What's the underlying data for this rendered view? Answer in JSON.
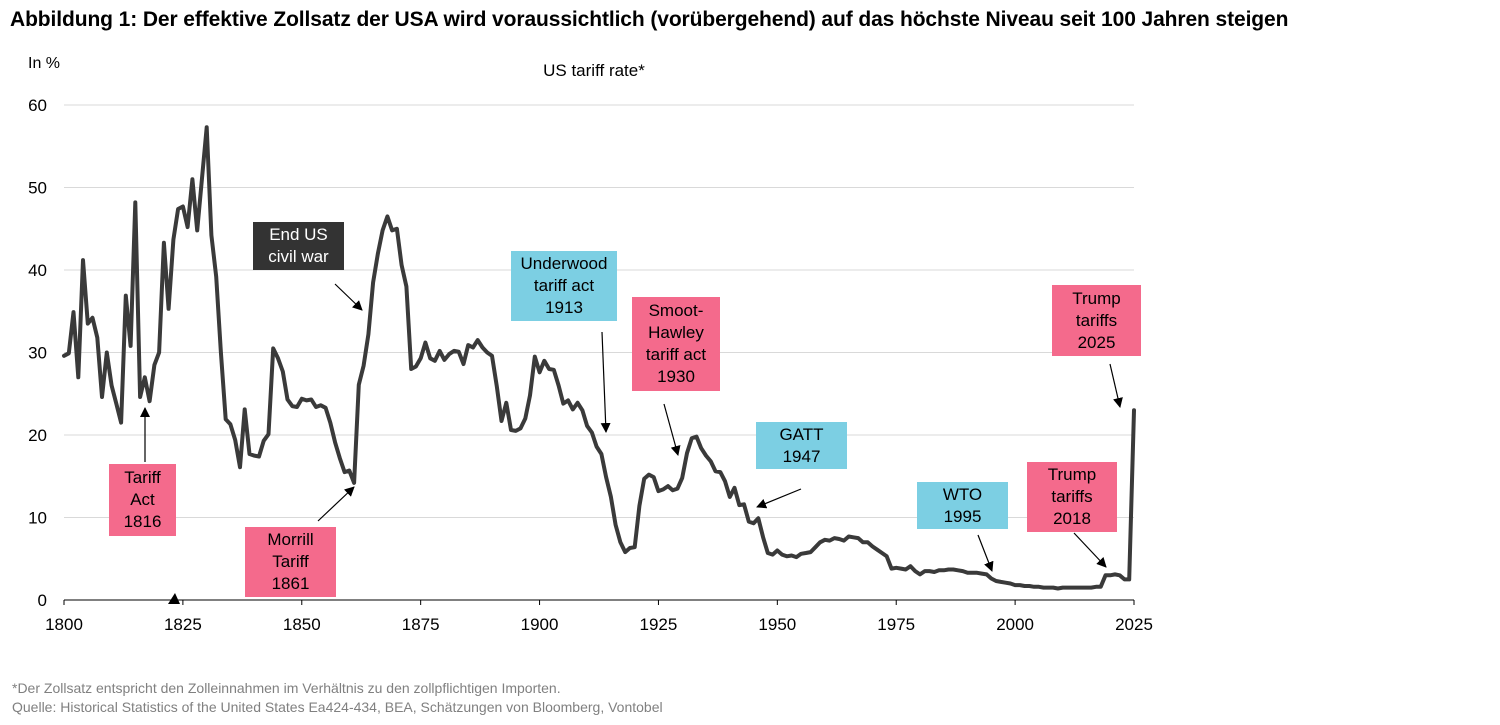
{
  "title": "Abbildung 1: Der effektive Zollsatz der USA wird voraussichtlich (vorübergehend) auf das höchste Niveau seit 100 Jahren steigen",
  "footnote": "*Der Zollsatz entspricht den Zolleinnahmen im Verhältnis zu den zollpflichtigen Importen.",
  "source": "Quelle: Historical Statistics of the United States Ea424-434, BEA, Schätzungen von Bloomberg, Vontobel",
  "colors": {
    "line": "#3a3a3a",
    "pink": "#f46a8c",
    "blue": "#7ccfe3",
    "dark": "#333333",
    "grid": "#d9d9d9"
  },
  "annotations": {
    "tariff_act_1816": "Tariff\nAct\n1816",
    "morrill_1861": "Morrill\nTariff\n1861",
    "civil_war": "End US\ncivil war",
    "underwood_1913": "Underwood\ntariff act\n1913",
    "smoot_hawley_1930": "Smoot-\nHawley\ntariff act\n1930",
    "gatt_1947": "GATT\n1947",
    "wto_1995": "WTO\n1995",
    "trump_2018": "Trump\ntariffs\n2018",
    "trump_2025": "Trump\ntariffs\n2025"
  },
  "chart_data": {
    "type": "line",
    "title": "US tariff rate*",
    "ylabel": "In %",
    "xlim": [
      1800,
      2025
    ],
    "ylim": [
      0,
      60
    ],
    "x_ticks": [
      1800,
      1825,
      1850,
      1875,
      1900,
      1925,
      1950,
      1975,
      2000,
      2025
    ],
    "y_ticks": [
      0,
      10,
      20,
      30,
      40,
      50,
      60
    ],
    "grid": "horizontal",
    "series": [
      {
        "values": [
          [
            1800,
            29.6
          ],
          [
            1801,
            29.9
          ],
          [
            1802,
            34.9
          ],
          [
            1803,
            27.0
          ],
          [
            1804,
            41.2
          ],
          [
            1805,
            33.5
          ],
          [
            1806,
            34.2
          ],
          [
            1807,
            31.8
          ],
          [
            1808,
            24.6
          ],
          [
            1809,
            30.0
          ],
          [
            1810,
            26.0
          ],
          [
            1811,
            23.8
          ],
          [
            1812,
            21.5
          ],
          [
            1813,
            36.9
          ],
          [
            1814,
            30.8
          ],
          [
            1815,
            48.2
          ],
          [
            1816,
            24.6
          ],
          [
            1817,
            27.0
          ],
          [
            1818,
            24.1
          ],
          [
            1819,
            28.5
          ],
          [
            1820,
            30.0
          ],
          [
            1821,
            43.3
          ],
          [
            1822,
            35.3
          ],
          [
            1823,
            43.7
          ],
          [
            1824,
            47.4
          ],
          [
            1825,
            47.7
          ],
          [
            1826,
            45.2
          ],
          [
            1827,
            51.0
          ],
          [
            1828,
            44.8
          ],
          [
            1829,
            51.0
          ],
          [
            1830,
            57.3
          ],
          [
            1831,
            44.2
          ],
          [
            1832,
            39.2
          ],
          [
            1833,
            30.0
          ],
          [
            1834,
            21.9
          ],
          [
            1835,
            21.3
          ],
          [
            1836,
            19.4
          ],
          [
            1837,
            16.1
          ],
          [
            1838,
            23.1
          ],
          [
            1839,
            17.7
          ],
          [
            1840,
            17.5
          ],
          [
            1841,
            17.4
          ],
          [
            1842,
            19.3
          ],
          [
            1843,
            20.1
          ],
          [
            1844,
            30.5
          ],
          [
            1845,
            29.3
          ],
          [
            1846,
            27.7
          ],
          [
            1847,
            24.3
          ],
          [
            1848,
            23.5
          ],
          [
            1849,
            23.4
          ],
          [
            1850,
            24.4
          ],
          [
            1851,
            24.2
          ],
          [
            1852,
            24.3
          ],
          [
            1853,
            23.4
          ],
          [
            1854,
            23.6
          ],
          [
            1855,
            23.3
          ],
          [
            1856,
            21.5
          ],
          [
            1857,
            19.1
          ],
          [
            1858,
            17.2
          ],
          [
            1859,
            15.5
          ],
          [
            1860,
            15.7
          ],
          [
            1861,
            14.2
          ],
          [
            1862,
            26.1
          ],
          [
            1863,
            28.4
          ],
          [
            1864,
            32.2
          ],
          [
            1865,
            38.5
          ],
          [
            1866,
            42.0
          ],
          [
            1867,
            44.8
          ],
          [
            1868,
            46.5
          ],
          [
            1869,
            44.8
          ],
          [
            1870,
            45.0
          ],
          [
            1871,
            40.6
          ],
          [
            1872,
            38.0
          ],
          [
            1873,
            28.0
          ],
          [
            1874,
            28.3
          ],
          [
            1875,
            29.3
          ],
          [
            1876,
            31.2
          ],
          [
            1877,
            29.3
          ],
          [
            1878,
            29.0
          ],
          [
            1879,
            30.2
          ],
          [
            1880,
            29.1
          ],
          [
            1881,
            29.8
          ],
          [
            1882,
            30.2
          ],
          [
            1883,
            30.1
          ],
          [
            1884,
            28.6
          ],
          [
            1885,
            30.9
          ],
          [
            1886,
            30.6
          ],
          [
            1887,
            31.5
          ],
          [
            1888,
            30.6
          ],
          [
            1889,
            30.0
          ],
          [
            1890,
            29.6
          ],
          [
            1891,
            25.9
          ],
          [
            1892,
            21.7
          ],
          [
            1893,
            23.9
          ],
          [
            1894,
            20.6
          ],
          [
            1895,
            20.5
          ],
          [
            1896,
            20.8
          ],
          [
            1897,
            22.0
          ],
          [
            1898,
            24.8
          ],
          [
            1899,
            29.5
          ],
          [
            1900,
            27.6
          ],
          [
            1901,
            29.0
          ],
          [
            1902,
            28.0
          ],
          [
            1903,
            27.9
          ],
          [
            1904,
            26.0
          ],
          [
            1905,
            23.8
          ],
          [
            1906,
            24.2
          ],
          [
            1907,
            23.1
          ],
          [
            1908,
            23.9
          ],
          [
            1909,
            23.0
          ],
          [
            1910,
            21.1
          ],
          [
            1911,
            20.3
          ],
          [
            1912,
            18.6
          ],
          [
            1913,
            17.7
          ],
          [
            1914,
            14.9
          ],
          [
            1915,
            12.5
          ],
          [
            1916,
            9.1
          ],
          [
            1917,
            7.0
          ],
          [
            1918,
            5.8
          ],
          [
            1919,
            6.3
          ],
          [
            1920,
            6.4
          ],
          [
            1921,
            11.4
          ],
          [
            1922,
            14.7
          ],
          [
            1923,
            15.2
          ],
          [
            1924,
            14.9
          ],
          [
            1925,
            13.2
          ],
          [
            1926,
            13.4
          ],
          [
            1927,
            13.8
          ],
          [
            1928,
            13.3
          ],
          [
            1929,
            13.5
          ],
          [
            1930,
            14.8
          ],
          [
            1931,
            17.8
          ],
          [
            1932,
            19.6
          ],
          [
            1933,
            19.8
          ],
          [
            1934,
            18.4
          ],
          [
            1935,
            17.5
          ],
          [
            1936,
            16.8
          ],
          [
            1937,
            15.6
          ],
          [
            1938,
            15.5
          ],
          [
            1939,
            14.4
          ],
          [
            1940,
            12.5
          ],
          [
            1941,
            13.6
          ],
          [
            1942,
            11.5
          ],
          [
            1943,
            11.6
          ],
          [
            1944,
            9.5
          ],
          [
            1945,
            9.3
          ],
          [
            1946,
            9.9
          ],
          [
            1947,
            7.6
          ],
          [
            1948,
            5.7
          ],
          [
            1949,
            5.5
          ],
          [
            1950,
            6.0
          ],
          [
            1951,
            5.5
          ],
          [
            1952,
            5.3
          ],
          [
            1953,
            5.4
          ],
          [
            1954,
            5.2
          ],
          [
            1955,
            5.6
          ],
          [
            1956,
            5.7
          ],
          [
            1957,
            5.8
          ],
          [
            1958,
            6.4
          ],
          [
            1959,
            7.0
          ],
          [
            1960,
            7.3
          ],
          [
            1961,
            7.2
          ],
          [
            1962,
            7.5
          ],
          [
            1963,
            7.4
          ],
          [
            1964,
            7.2
          ],
          [
            1965,
            7.7
          ],
          [
            1966,
            7.6
          ],
          [
            1967,
            7.5
          ],
          [
            1968,
            7.0
          ],
          [
            1969,
            7.0
          ],
          [
            1970,
            6.5
          ],
          [
            1971,
            6.1
          ],
          [
            1972,
            5.7
          ],
          [
            1973,
            5.3
          ],
          [
            1974,
            3.8
          ],
          [
            1975,
            3.9
          ],
          [
            1976,
            3.8
          ],
          [
            1977,
            3.7
          ],
          [
            1978,
            4.1
          ],
          [
            1979,
            3.5
          ],
          [
            1980,
            3.1
          ],
          [
            1981,
            3.5
          ],
          [
            1982,
            3.5
          ],
          [
            1983,
            3.4
          ],
          [
            1984,
            3.6
          ],
          [
            1985,
            3.6
          ],
          [
            1986,
            3.7
          ],
          [
            1987,
            3.7
          ],
          [
            1988,
            3.6
          ],
          [
            1989,
            3.5
          ],
          [
            1990,
            3.3
          ],
          [
            1991,
            3.3
          ],
          [
            1992,
            3.3
          ],
          [
            1993,
            3.2
          ],
          [
            1994,
            3.1
          ],
          [
            1995,
            2.6
          ],
          [
            1996,
            2.3
          ],
          [
            1997,
            2.2
          ],
          [
            1998,
            2.1
          ],
          [
            1999,
            2.0
          ],
          [
            2000,
            1.8
          ],
          [
            2001,
            1.8
          ],
          [
            2002,
            1.7
          ],
          [
            2003,
            1.7
          ],
          [
            2004,
            1.6
          ],
          [
            2005,
            1.6
          ],
          [
            2006,
            1.5
          ],
          [
            2007,
            1.5
          ],
          [
            2008,
            1.5
          ],
          [
            2009,
            1.4
          ],
          [
            2010,
            1.5
          ],
          [
            2011,
            1.5
          ],
          [
            2012,
            1.5
          ],
          [
            2013,
            1.5
          ],
          [
            2014,
            1.5
          ],
          [
            2015,
            1.5
          ],
          [
            2016,
            1.5
          ],
          [
            2017,
            1.6
          ],
          [
            2018,
            1.6
          ],
          [
            2019,
            3.0
          ],
          [
            2020,
            3.0
          ],
          [
            2021,
            3.1
          ],
          [
            2022,
            3.0
          ],
          [
            2023,
            2.5
          ],
          [
            2024,
            2.5
          ],
          [
            2025,
            23.0
          ]
        ]
      }
    ]
  }
}
